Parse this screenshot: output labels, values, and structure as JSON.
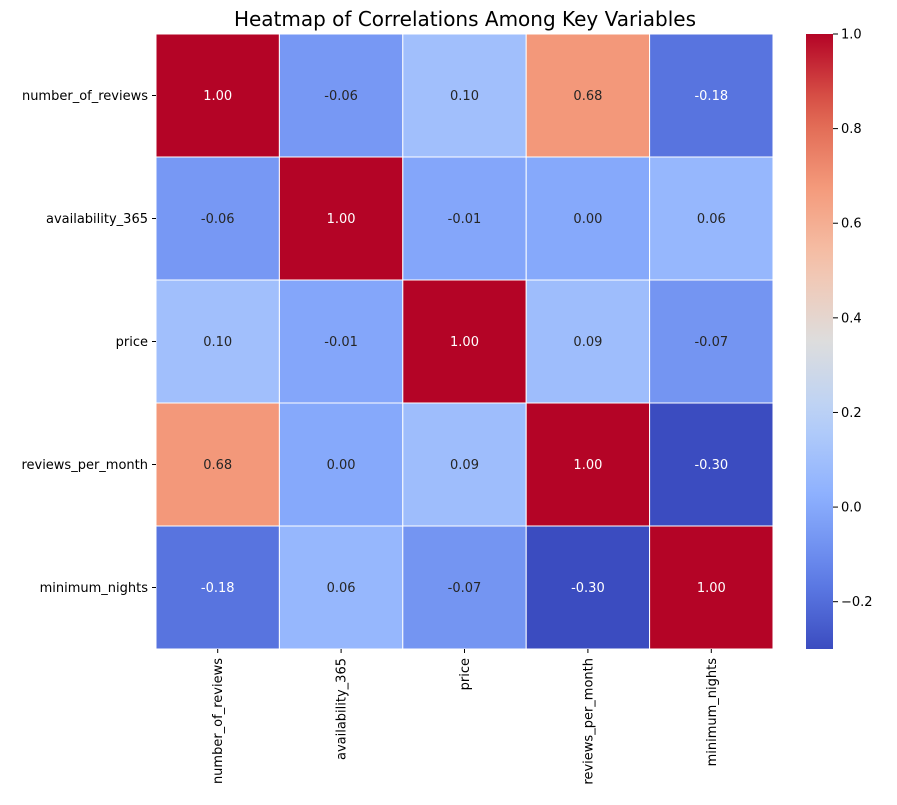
{
  "chart_data": {
    "type": "heatmap",
    "title": "Heatmap of Correlations Among Key Variables",
    "row_labels": [
      "number_of_reviews",
      "availability_365",
      "price",
      "reviews_per_month",
      "minimum_nights"
    ],
    "col_labels": [
      "number_of_reviews",
      "availability_365",
      "price",
      "reviews_per_month",
      "minimum_nights"
    ],
    "values": [
      [
        1.0,
        -0.06,
        0.1,
        0.68,
        -0.18
      ],
      [
        -0.06,
        1.0,
        -0.01,
        0.0,
        0.06
      ],
      [
        0.1,
        -0.01,
        1.0,
        0.09,
        -0.07
      ],
      [
        0.68,
        0.0,
        0.09,
        1.0,
        -0.3
      ],
      [
        -0.18,
        0.06,
        -0.07,
        -0.3,
        1.0
      ]
    ],
    "annotations": [
      [
        "1.00",
        "-0.06",
        "0.10",
        "0.68",
        "-0.18"
      ],
      [
        "-0.06",
        "1.00",
        "-0.01",
        "0.00",
        "0.06"
      ],
      [
        "0.10",
        "-0.01",
        "1.00",
        "0.09",
        "-0.07"
      ],
      [
        "0.68",
        "0.00",
        "0.09",
        "1.00",
        "-0.30"
      ],
      [
        "-0.18",
        "0.06",
        "-0.07",
        "-0.30",
        "1.00"
      ]
    ],
    "colormap": "coolwarm",
    "vmin": -0.3,
    "vmax": 1.0,
    "colorbar_ticks": [
      {
        "value": 1.0,
        "label": "1.0"
      },
      {
        "value": 0.8,
        "label": "0.8"
      },
      {
        "value": 0.6,
        "label": "0.6"
      },
      {
        "value": 0.4,
        "label": "0.4"
      },
      {
        "value": 0.2,
        "label": "0.2"
      },
      {
        "value": 0.0,
        "label": "0.0"
      },
      {
        "value": -0.2,
        "label": "−0.2"
      }
    ],
    "colors": {
      "cell_border": "#ffffff",
      "text_on_dark": "#ffffff",
      "text_on_light": "#262626"
    }
  }
}
